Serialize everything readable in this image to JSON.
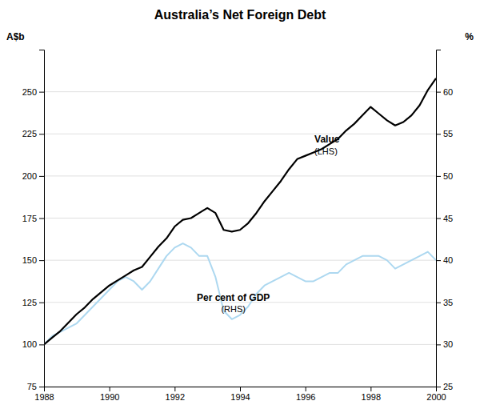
{
  "chart_data": {
    "type": "line",
    "title": "Australia’s Net Foreign Debt",
    "ylabel": "A$b",
    "y2label": "%",
    "x": [
      1988.0,
      1988.25,
      1988.5,
      1988.75,
      1989.0,
      1989.25,
      1989.5,
      1989.75,
      1990.0,
      1990.25,
      1990.5,
      1990.75,
      1991.0,
      1991.25,
      1991.5,
      1991.75,
      1992.0,
      1992.25,
      1992.5,
      1992.75,
      1993.0,
      1993.25,
      1993.5,
      1993.75,
      1994.0,
      1994.25,
      1994.5,
      1994.75,
      1995.0,
      1995.25,
      1995.5,
      1995.75,
      1996.0,
      1996.25,
      1996.5,
      1996.75,
      1997.0,
      1997.25,
      1997.5,
      1997.75,
      1998.0,
      1998.25,
      1998.5,
      1998.75,
      1999.0,
      1999.25,
      1999.5,
      1999.75,
      2000.0
    ],
    "xlim": [
      1988,
      2000
    ],
    "xticks": [
      1988,
      1990,
      1992,
      1994,
      1996,
      1998,
      2000
    ],
    "ylim": [
      75,
      275
    ],
    "yticks": [
      75,
      100,
      125,
      150,
      175,
      200,
      225,
      250
    ],
    "y2lim": [
      25,
      65
    ],
    "y2ticks": [
      25,
      30,
      35,
      40,
      45,
      50,
      55,
      60
    ],
    "grid": true,
    "series": [
      {
        "color": "#000000",
        "values": [
          100,
          104,
          108,
          113,
          118,
          122,
          127,
          131,
          135,
          138,
          141,
          144,
          146,
          152,
          158,
          163,
          170,
          174,
          175,
          178,
          181,
          178,
          168,
          167,
          168,
          172,
          178,
          185,
          191,
          197,
          204,
          210,
          212,
          214,
          216,
          219,
          222,
          227,
          231,
          236,
          241,
          237,
          233,
          230,
          232,
          236,
          242,
          251,
          258
        ]
      },
      {
        "color": "#add8f0",
        "axis": "y2",
        "values": [
          30.0,
          31.0,
          31.5,
          32.0,
          32.5,
          33.5,
          34.5,
          35.5,
          36.5,
          37.5,
          38.0,
          37.5,
          36.5,
          37.5,
          39.0,
          40.5,
          41.5,
          42.0,
          41.5,
          40.5,
          40.5,
          38.0,
          34.0,
          33.0,
          33.5,
          34.5,
          36.0,
          37.0,
          37.5,
          38.0,
          38.5,
          38.0,
          37.5,
          37.5,
          38.0,
          38.5,
          38.5,
          39.5,
          40.0,
          40.5,
          40.5,
          40.5,
          40.0,
          39.0,
          39.5,
          40.0,
          40.5,
          41.0,
          40.0
        ]
      }
    ],
    "annotations": [
      [
        "Value",
        "(LHS)"
      ],
      [
        "Per cent of GDP",
        "(RHS)"
      ]
    ]
  }
}
